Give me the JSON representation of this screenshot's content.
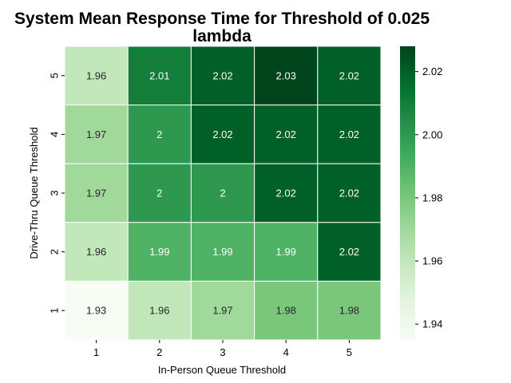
{
  "chart_data": {
    "type": "heatmap",
    "title": "System Mean Response Time for Threshold of 0.025 lambda",
    "title_lines": [
      "System Mean Response Time for Threshold of 0.025",
      "lambda"
    ],
    "xlabel": "In-Person Queue Threshold",
    "ylabel": "Drive-Thru Queue Threshold",
    "x_categories": [
      "1",
      "2",
      "3",
      "4",
      "5"
    ],
    "y_categories": [
      "5",
      "4",
      "3",
      "2",
      "1"
    ],
    "values": [
      [
        1.96,
        2.01,
        2.02,
        2.03,
        2.02
      ],
      [
        1.97,
        2.0,
        2.02,
        2.02,
        2.02
      ],
      [
        1.97,
        2.0,
        2.0,
        2.02,
        2.02
      ],
      [
        1.96,
        1.99,
        1.99,
        1.99,
        2.02
      ],
      [
        1.93,
        1.96,
        1.97,
        1.98,
        1.98
      ]
    ],
    "cell_labels": [
      [
        "1.96",
        "2.01",
        "2.02",
        "2.03",
        "2.02"
      ],
      [
        "1.97",
        "2",
        "2.02",
        "2.02",
        "2.02"
      ],
      [
        "1.97",
        "2",
        "2",
        "2.02",
        "2.02"
      ],
      [
        "1.96",
        "1.99",
        "1.99",
        "1.99",
        "2.02"
      ],
      [
        "1.93",
        "1.96",
        "1.97",
        "1.98",
        "1.98"
      ]
    ],
    "colorbar": {
      "range": [
        1.935,
        2.028
      ],
      "ticks": [
        1.94,
        1.96,
        1.98,
        2.0,
        2.02
      ],
      "tick_labels": [
        "1.94",
        "1.96",
        "1.98",
        "2.00",
        "2.02"
      ],
      "colormap": "Greens"
    }
  }
}
